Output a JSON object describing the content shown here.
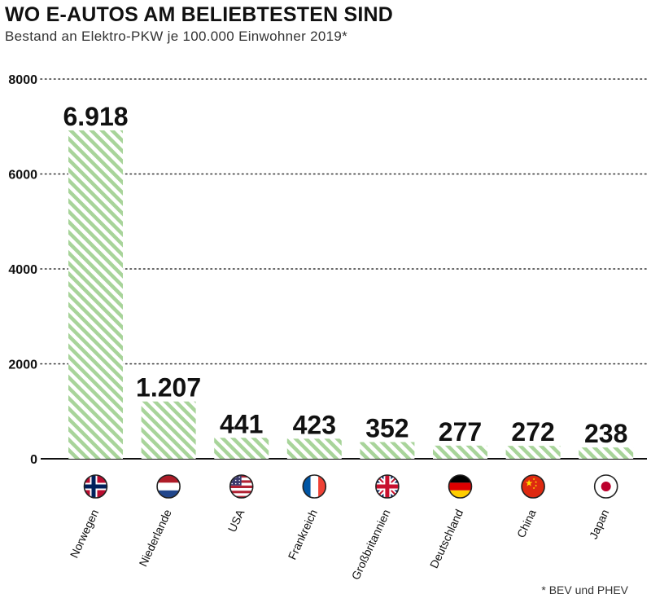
{
  "header": {
    "title": "WO E-AUTOS AM BELIEBTESTEN SIND",
    "subtitle": "Bestand an Elektro-PKW je 100.000 Einwohner 2019*"
  },
  "footnote": "* BEV und PHEV",
  "colors": {
    "bar_stripe": "#a8d49a",
    "grid": "#333333",
    "axis": "#111111"
  },
  "chart_data": {
    "type": "bar",
    "title": "WO E-AUTOS AM BELIEBTESTEN SIND",
    "subtitle": "Bestand an Elektro-PKW je 100.000 Einwohner 2019*",
    "categories": [
      "Norwegen",
      "Niederlande",
      "USA",
      "Frankreich",
      "Großbritannien",
      "Deutschland",
      "China",
      "Japan"
    ],
    "values": [
      6918,
      1207,
      441,
      423,
      352,
      277,
      272,
      238
    ],
    "value_labels": [
      "6.918",
      "1.207",
      "441",
      "423",
      "352",
      "277",
      "272",
      "238"
    ],
    "flags": [
      "norway-flag",
      "netherlands-flag",
      "usa-flag",
      "france-flag",
      "uk-flag",
      "germany-flag",
      "china-flag",
      "japan-flag"
    ],
    "yticks": [
      0,
      2000,
      4000,
      6000,
      8000
    ],
    "ytick_labels": [
      "0",
      "2000",
      "4000",
      "6000",
      "8000"
    ],
    "ylim": [
      0,
      8000
    ],
    "xlabel": "",
    "ylabel": "",
    "grid": true,
    "legend": "none"
  }
}
